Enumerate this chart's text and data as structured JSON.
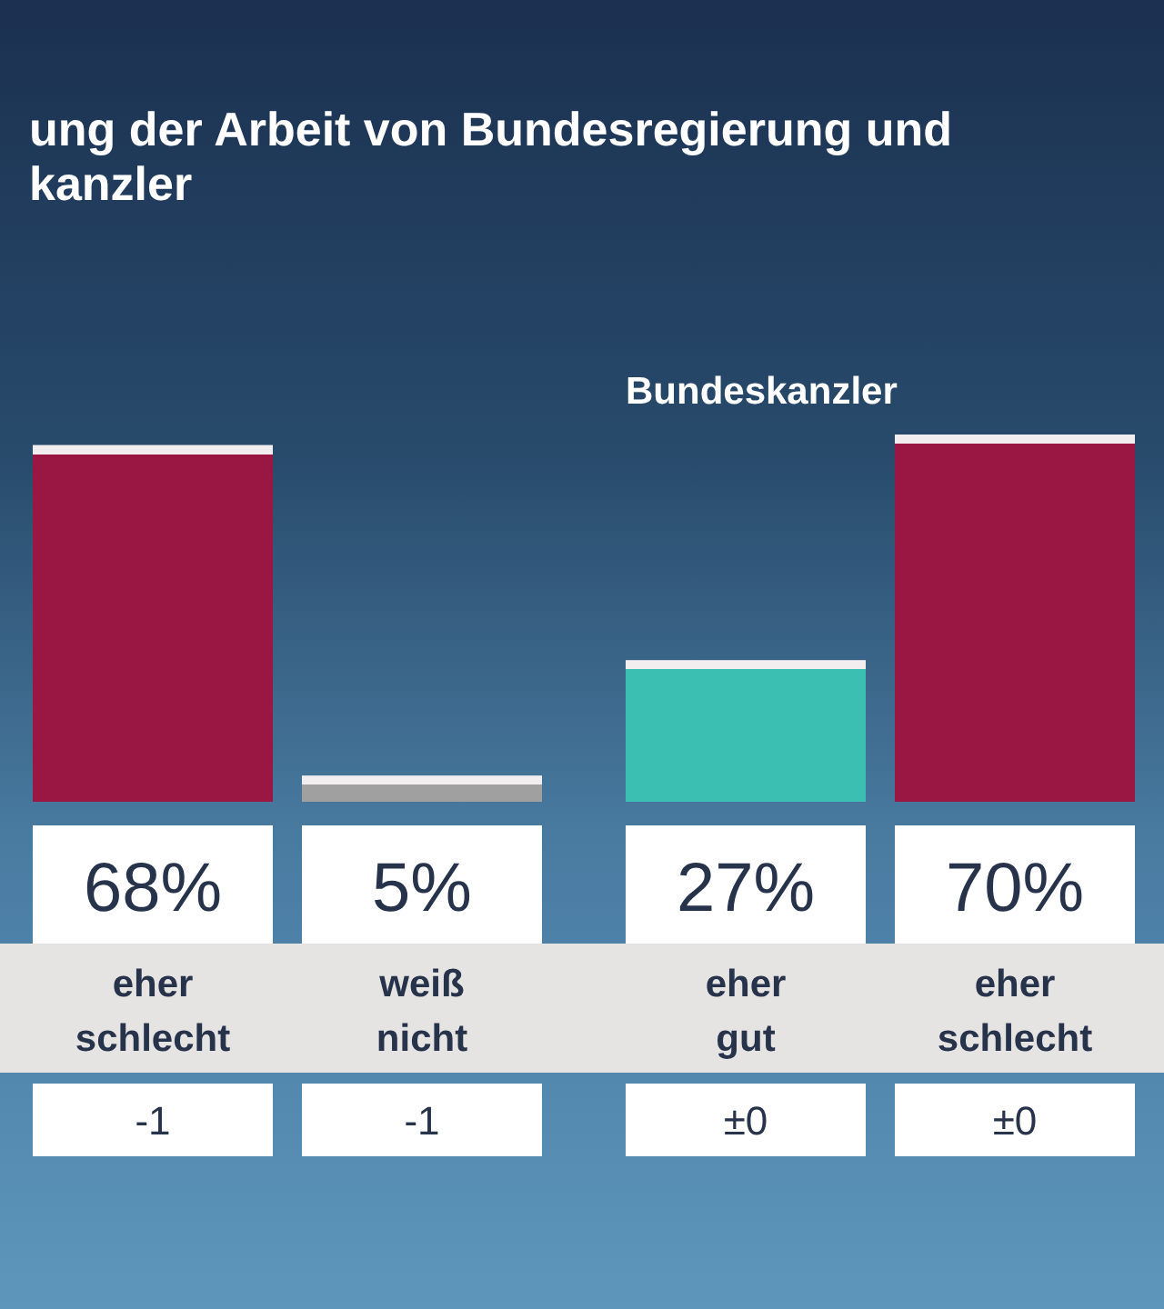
{
  "chart_data": {
    "type": "bar",
    "title": "ung der Arbeit von Bundesregierung und kanzler",
    "categories": [
      "eher schlecht",
      "weiß nicht",
      "eher gut",
      "eher schlecht"
    ],
    "values": [
      68,
      5,
      27,
      70
    ],
    "colors": [
      "#9a1744",
      "#a0a0a0",
      "#3cbfb3",
      "#9a1744"
    ],
    "value_labels": [
      "68%",
      "5%",
      "27%",
      "70%"
    ],
    "annotations": [
      "Bundeskanzler",
      "-1",
      "-1",
      "±0",
      "±0"
    ]
  }
}
